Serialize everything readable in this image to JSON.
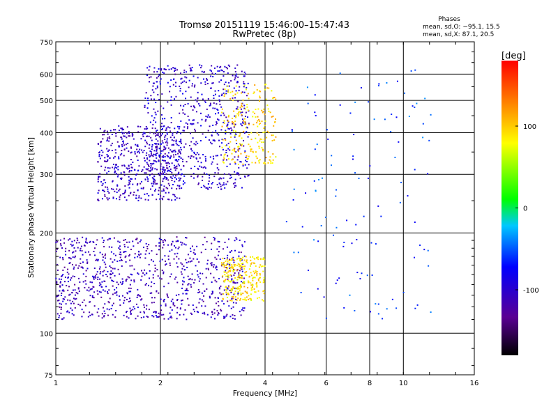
{
  "chart_data": {
    "type": "scatter",
    "title": "Tromsø 20151119 15:46:00–15:47:43",
    "subtitle": "RwPretec (8p)",
    "xlabel": "Frequency [MHz]",
    "ylabel": "Stationary phase Virtual Height [km]",
    "x_scale": "log2",
    "y_scale": "log",
    "xlim": [
      1,
      16
    ],
    "ylim": [
      75,
      750
    ],
    "x_ticks": [
      1,
      2,
      4,
      6,
      8,
      10,
      16
    ],
    "y_ticks": [
      75,
      100,
      200,
      300,
      400,
      500,
      600,
      750
    ],
    "grid": true,
    "legend": {
      "position": "top-right",
      "heading": "Phases",
      "lines": [
        "mean, sd,O: −95.1, 15.5",
        "mean, sd,X: 87.1, 20.5"
      ]
    },
    "colorbar": {
      "label": "[deg]",
      "range": [
        -180,
        180
      ],
      "ticks": [
        100,
        0,
        -100
      ],
      "colormap": [
        "#000000",
        "#5a0094",
        "#0000ff",
        "#00c8ff",
        "#00ff00",
        "#ffff00",
        "#ff0000"
      ]
    },
    "clusters": [
      {
        "name": "F-region O trace",
        "x_range": [
          1.32,
          2.3
        ],
        "y_range": [
          250,
          420
        ],
        "phase": -105,
        "approx_points": 520
      },
      {
        "name": "F-region spread",
        "x_range": [
          1.8,
          3.6
        ],
        "y_range": [
          270,
          640
        ],
        "phase": -100,
        "approx_points": 650
      },
      {
        "name": "F-region X trace",
        "x_range": [
          3.0,
          4.3
        ],
        "y_range": [
          320,
          560
        ],
        "phase": 95,
        "approx_points": 220
      },
      {
        "name": "E-region spread",
        "x_range": [
          1.0,
          3.5
        ],
        "y_range": [
          110,
          195
        ],
        "phase": -110,
        "approx_points": 900
      },
      {
        "name": "E-region X",
        "x_range": [
          3.0,
          4.0
        ],
        "y_range": [
          125,
          170
        ],
        "phase": 90,
        "approx_points": 260
      },
      {
        "name": "Vertical streaks",
        "x_range": [
          4.6,
          12.0
        ],
        "y_range": [
          110,
          620
        ],
        "phase": -60,
        "approx_points": 120
      }
    ]
  }
}
